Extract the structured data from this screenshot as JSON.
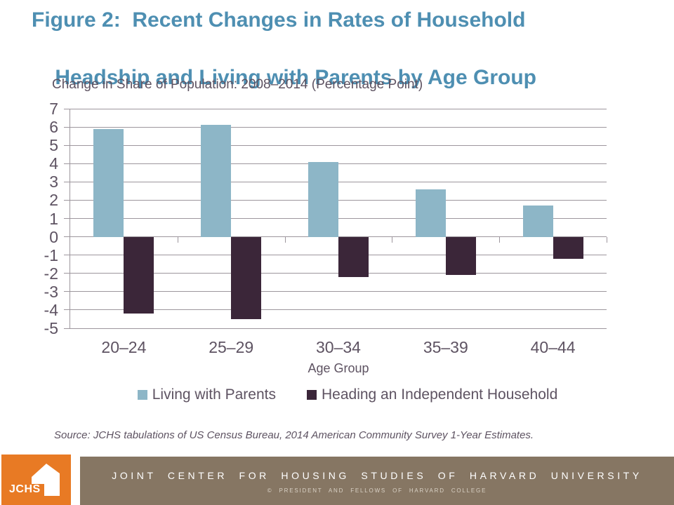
{
  "title": {
    "line1": "Figure 2:  Recent Changes in Rates of Household",
    "line2": "Headship and Living with Parents by Age Group"
  },
  "chart_data": {
    "type": "bar",
    "title": "Change in Share of Population: 2008–2014 (Percentage Point)",
    "categories": [
      "20–24",
      "25–29",
      "30–34",
      "35–39",
      "40–44"
    ],
    "series": [
      {
        "name": "Living with Parents",
        "color": "#8DB6C7",
        "values": [
          5.9,
          6.1,
          4.1,
          2.6,
          1.7
        ]
      },
      {
        "name": "Heading an Independent Household",
        "color": "#3B2639",
        "values": [
          -4.2,
          -4.5,
          -2.2,
          -2.1,
          -1.2
        ]
      }
    ],
    "xlabel": "Age Group",
    "ylim": [
      -5,
      7
    ],
    "yticks": [
      7,
      6,
      5,
      4,
      3,
      2,
      1,
      0,
      -1,
      -2,
      -3,
      -4,
      -5
    ],
    "grid": true,
    "legend_position": "bottom"
  },
  "source": "Source: JCHS tabulations of US Census Bureau, 2014 American Community Survey 1-Year Estimates.",
  "footer": {
    "logo_text": "JCHS",
    "org": "JOINT CENTER FOR HOUSING STUDIES OF HARVARD UNIVERSITY",
    "copyright": "© PRESIDENT AND FELLOWS OF HARVARD COLLEGE"
  },
  "colors": {
    "title_teal": "#4E8FB2",
    "text_gray_purple": "#5E5362",
    "bar_blue": "#8DB6C7",
    "bar_plum": "#3B2639",
    "gridline": "#9D969D",
    "logo_orange": "#E87A24",
    "footer_band": "#867663"
  }
}
